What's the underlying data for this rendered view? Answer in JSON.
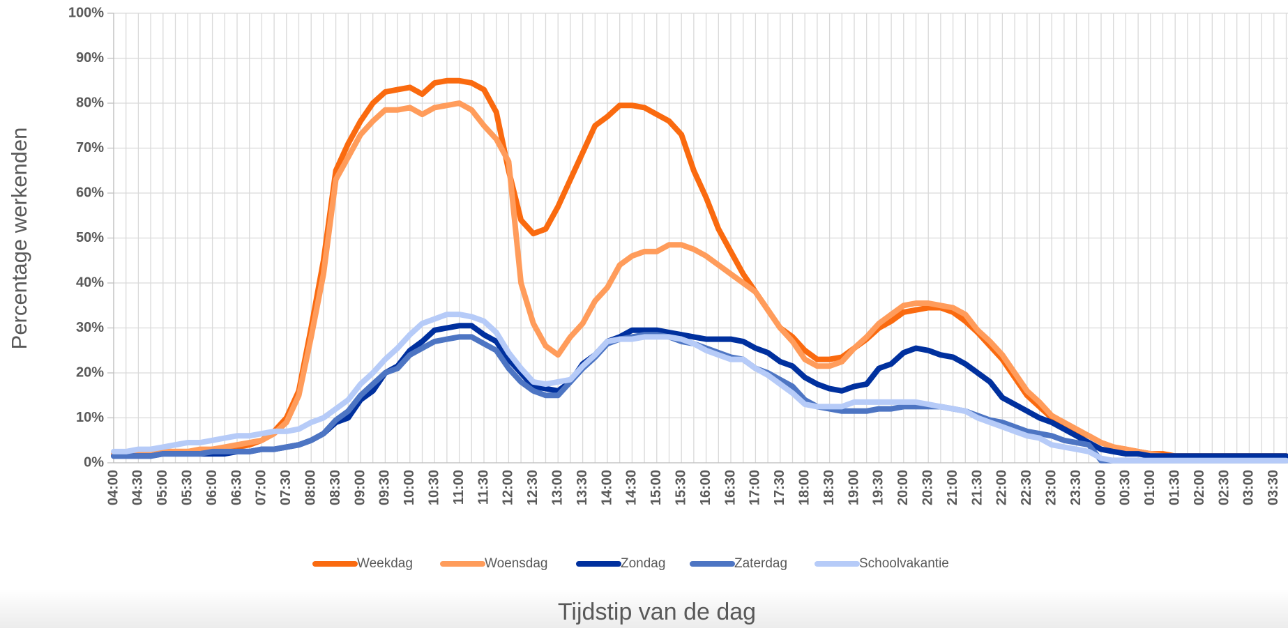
{
  "chart_data": {
    "type": "line",
    "x_label": "Tijdstip van de dag",
    "y_label": "Percentage werkenden",
    "categories": [
      "04:00",
      null,
      "04:30",
      null,
      "05:00",
      null,
      "05:30",
      null,
      "06:00",
      null,
      "06:30",
      null,
      "07:00",
      null,
      "07:30",
      null,
      "08:00",
      null,
      "08:30",
      null,
      "09:00",
      null,
      "09:30",
      null,
      "10:00",
      null,
      "10:30",
      null,
      "11:00",
      null,
      "11:30",
      null,
      "12:00",
      null,
      "12:30",
      null,
      "13:00",
      null,
      "13:30",
      null,
      "14:00",
      null,
      "14:30",
      null,
      "15:00",
      null,
      "15:30",
      null,
      "16:00",
      null,
      "16:30",
      null,
      "17:00",
      null,
      "17:30",
      null,
      "18:00",
      null,
      "18:30",
      null,
      "19:00",
      null,
      "19:30",
      null,
      "20:00",
      null,
      "20:30",
      null,
      "21:00",
      null,
      "21:30",
      null,
      "22:00",
      null,
      "22:30",
      null,
      "23:00",
      null,
      "23:30",
      null,
      "00:00",
      null,
      "00:30",
      null,
      "01:00",
      null,
      "01:30",
      null,
      "02:00",
      null,
      "02:30",
      null,
      "03:00",
      null,
      "03:30",
      null
    ],
    "ylim": [
      0,
      100
    ],
    "yticks": [
      {
        "value": 0,
        "label": "0%"
      },
      {
        "value": 10,
        "label": "10%"
      },
      {
        "value": 20,
        "label": "20%"
      },
      {
        "value": 30,
        "label": "30%"
      },
      {
        "value": 40,
        "label": "40%"
      },
      {
        "value": 50,
        "label": "50%"
      },
      {
        "value": 60,
        "label": "60%"
      },
      {
        "value": 70,
        "label": "70%"
      },
      {
        "value": 80,
        "label": "80%"
      },
      {
        "value": 90,
        "label": "90%"
      },
      {
        "value": 100,
        "label": "100%"
      }
    ],
    "grid": true,
    "legend": "bottom",
    "series": [
      {
        "name": "Weekdag",
        "color": "#fa6a0f",
        "values": [
          2,
          2,
          2,
          2,
          2.5,
          2.5,
          2.5,
          2.5,
          3,
          3,
          3.5,
          4,
          5,
          7,
          10,
          16,
          30,
          45,
          65,
          71,
          76,
          80,
          82.5,
          83,
          83.5,
          82,
          84.5,
          85,
          85,
          84.5,
          83,
          78,
          65,
          54,
          51,
          52,
          57,
          63,
          69,
          75,
          77,
          79.5,
          79.5,
          79,
          77.5,
          76,
          73,
          65,
          59,
          52,
          47,
          42,
          38,
          34,
          30,
          28,
          25,
          23,
          23,
          23.5,
          25.5,
          27.5,
          30,
          31.5,
          33.5,
          34,
          34.5,
          34.5,
          33.5,
          31.5,
          29,
          26,
          23,
          19,
          15,
          12.5,
          10,
          8.5,
          7,
          6,
          4.5,
          3.5,
          3,
          2.5,
          2,
          2,
          1.5,
          1.5,
          1.5,
          1.5,
          1.5,
          1.5,
          1.5,
          1.5,
          1.5,
          1.5
        ]
      },
      {
        "name": "Woensdag",
        "color": "#ff9c5b",
        "values": [
          2,
          2,
          2,
          2,
          2.5,
          2.5,
          2.5,
          3,
          3,
          3.5,
          4,
          4.5,
          5,
          6.5,
          9,
          15,
          28,
          42,
          63,
          68,
          73,
          76,
          78.5,
          78.5,
          79,
          77.5,
          79,
          79.5,
          80,
          78.5,
          75,
          72,
          67,
          40,
          31,
          26,
          24,
          28,
          31,
          36,
          39,
          44,
          46,
          47,
          47,
          48.5,
          48.5,
          47.5,
          46,
          44,
          42,
          40,
          38,
          34,
          30,
          27,
          23,
          21.5,
          21.5,
          22.5,
          25.5,
          28,
          31,
          33,
          35,
          35.5,
          35.5,
          35,
          34.5,
          33,
          29.5,
          27,
          24,
          20,
          16,
          13.5,
          10.5,
          9,
          7.5,
          6,
          4.5,
          3.5,
          3,
          2.5,
          2,
          1.5,
          1.5,
          1.5,
          1.5,
          1.5,
          1.5,
          1.5,
          1.5,
          1.5,
          1.5,
          1.5
        ]
      },
      {
        "name": "Zondag",
        "color": "#00309e",
        "values": [
          1.5,
          1.5,
          1.5,
          1.5,
          2,
          2,
          2,
          2,
          2,
          2,
          2.5,
          2.5,
          3,
          3,
          3.5,
          4,
          5,
          6.5,
          9,
          10,
          14,
          16,
          20,
          21.5,
          25,
          27,
          29.5,
          30,
          30.5,
          30.5,
          28.5,
          27,
          23,
          20,
          17,
          16.5,
          16,
          18,
          22,
          24,
          27,
          28,
          29.5,
          29.5,
          29.5,
          29,
          28.5,
          28,
          27.5,
          27.5,
          27.5,
          27,
          25.5,
          24.5,
          22.5,
          21.5,
          19,
          17.5,
          16.5,
          16,
          17,
          17.5,
          21,
          22,
          24.5,
          25.5,
          25,
          24,
          23.5,
          22,
          20,
          18,
          14.5,
          13,
          11.5,
          10,
          9,
          7.5,
          6,
          4.5,
          3,
          2.5,
          2,
          2,
          1.5,
          1.5,
          1.5,
          1.5,
          1.5,
          1.5,
          1.5,
          1.5,
          1.5,
          1.5,
          1.5,
          1.5
        ]
      },
      {
        "name": "Zaterdag",
        "color": "#4d75c3",
        "values": [
          1.5,
          1.5,
          1.5,
          1.5,
          2,
          2,
          2,
          2,
          2.5,
          2.5,
          2.5,
          2.5,
          3,
          3,
          3.5,
          4,
          5,
          6.5,
          9.5,
          11.5,
          15,
          17.5,
          20,
          21,
          24,
          25.5,
          27,
          27.5,
          28,
          28,
          26.5,
          25,
          21,
          18,
          16,
          15,
          15,
          18,
          21,
          23.5,
          26.5,
          27.5,
          28,
          28.5,
          28.5,
          28,
          27,
          26.5,
          25.5,
          24.5,
          23.5,
          23,
          21,
          20,
          18.5,
          17,
          14,
          12.5,
          12,
          11.5,
          11.5,
          11.5,
          12,
          12,
          12.5,
          12.5,
          12.5,
          12.5,
          12,
          11.5,
          10.5,
          9.5,
          9,
          8,
          7,
          6.5,
          6,
          5,
          4.5,
          4,
          0.5,
          0.5,
          0.5,
          0.5,
          0.5,
          0.5,
          0.5,
          0.5,
          0.5,
          0.5,
          0.5,
          0.5,
          0.5,
          0.5,
          0.5,
          0.5
        ]
      },
      {
        "name": "Schoolvakantie",
        "color": "#b6cbf8",
        "values": [
          2.5,
          2.5,
          3,
          3,
          3.5,
          4,
          4.5,
          4.5,
          5,
          5.5,
          6,
          6,
          6.5,
          7,
          7,
          7.5,
          9,
          10,
          12,
          14,
          17.5,
          20,
          23,
          25.5,
          28.5,
          31,
          32,
          33,
          33,
          32.5,
          31.5,
          29,
          24.5,
          21,
          18,
          17.5,
          18,
          18.5,
          21.5,
          24,
          27,
          27.5,
          27.5,
          28,
          28,
          28,
          27.5,
          26.5,
          25,
          24,
          23,
          23,
          21,
          19.5,
          17.5,
          15.5,
          13,
          12.5,
          12.5,
          12.5,
          13.5,
          13.5,
          13.5,
          13.5,
          13.5,
          13.5,
          13,
          12.5,
          12,
          11.5,
          10,
          9,
          8,
          7,
          6,
          5.5,
          4,
          3.5,
          3,
          2.5,
          1,
          0.5,
          0.5,
          0.5,
          0.5,
          0.5,
          0.5,
          0.5,
          0.5,
          0.5,
          0.5,
          0.5,
          0.5,
          0.5,
          0.5,
          0.5
        ]
      }
    ]
  }
}
